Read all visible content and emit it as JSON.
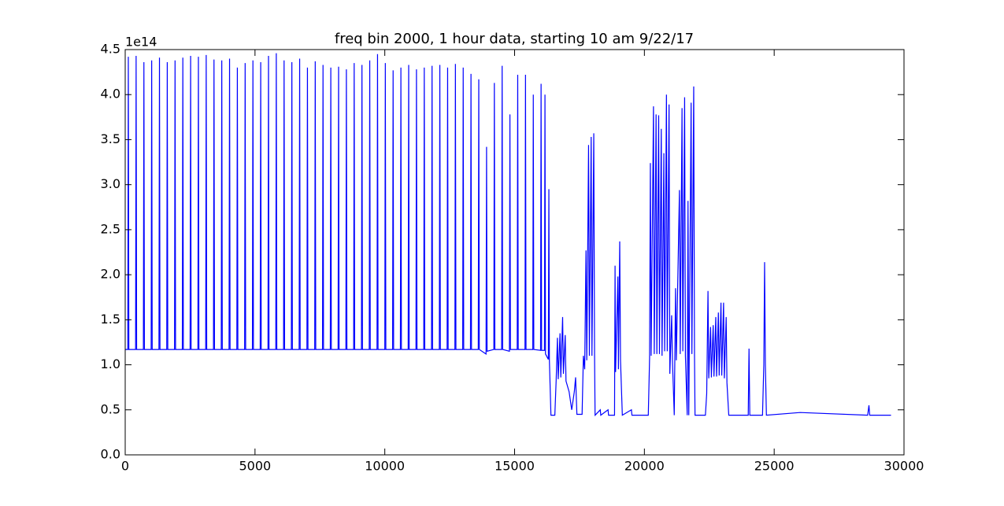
{
  "chart_data": {
    "type": "line",
    "title": "freq bin 2000, 1 hour data, starting 10 am 9/22/17",
    "y_offset_label": "1e14",
    "xlim": [
      0,
      30000
    ],
    "xticks": [
      0,
      5000,
      10000,
      15000,
      20000,
      25000,
      30000
    ],
    "ylim": [
      0,
      4.5
    ],
    "yticks": [
      {
        "value": 0,
        "label": "0.0"
      },
      0.5,
      {
        "value": 1,
        "label": "1.0"
      },
      1.5,
      {
        "value": 2,
        "label": "2.0"
      },
      2.5,
      {
        "value": 3,
        "label": "3.0"
      },
      3.5,
      {
        "value": 4,
        "label": "4.0"
      },
      4.5
    ],
    "grid": false,
    "x": [
      0,
      100,
      120,
      140,
      400,
      420,
      440,
      700,
      720,
      740,
      1000,
      1020,
      1040,
      1300,
      1320,
      1340,
      1600,
      1620,
      1640,
      1900,
      1920,
      1940,
      2200,
      2220,
      2240,
      2500,
      2520,
      2540,
      2800,
      2820,
      2840,
      3100,
      3120,
      3140,
      3400,
      3420,
      3440,
      3700,
      3720,
      3740,
      4000,
      4020,
      4040,
      4300,
      4320,
      4340,
      4600,
      4620,
      4640,
      4900,
      4920,
      4940,
      5200,
      5220,
      5240,
      5500,
      5520,
      5540,
      5800,
      5820,
      5840,
      6100,
      6120,
      6140,
      6400,
      6420,
      6440,
      6700,
      6720,
      6740,
      7000,
      7020,
      7040,
      7300,
      7320,
      7340,
      7600,
      7620,
      7640,
      7900,
      7920,
      7940,
      8200,
      8220,
      8240,
      8500,
      8520,
      8540,
      8800,
      8820,
      8840,
      9100,
      9120,
      9140,
      9400,
      9420,
      9440,
      9700,
      9720,
      9740,
      10000,
      10020,
      10040,
      10300,
      10320,
      10340,
      10600,
      10620,
      10640,
      10900,
      10920,
      10940,
      11200,
      11220,
      11240,
      11500,
      11520,
      11540,
      11800,
      11820,
      11840,
      12100,
      12120,
      12140,
      12400,
      12420,
      12440,
      12700,
      12720,
      12740,
      13000,
      13020,
      13040,
      13300,
      13320,
      13340,
      13600,
      13620,
      13640,
      13900,
      13920,
      13940,
      14200,
      14220,
      14240,
      14500,
      14520,
      14540,
      14800,
      14820,
      14840,
      15100,
      15120,
      15140,
      15400,
      15420,
      15440,
      15700,
      15720,
      15740,
      16000,
      16020,
      16040,
      16150,
      16170,
      16190,
      16300,
      16320,
      16340,
      16400,
      16550,
      16600,
      16650,
      16680,
      16750,
      16780,
      16850,
      16880,
      16950,
      16980,
      17100,
      17200,
      17300,
      17350,
      17400,
      17600,
      17650,
      17700,
      17750,
      17780,
      17850,
      17880,
      17950,
      17980,
      18050,
      18080,
      18100,
      18300,
      18320,
      18600,
      18620,
      18850,
      18870,
      18890,
      18980,
      19000,
      19050,
      19080,
      19150,
      19500,
      19520,
      20150,
      20200,
      20230,
      20260,
      20350,
      20380,
      20450,
      20480,
      20550,
      20580,
      20650,
      20680,
      20750,
      20780,
      20850,
      20880,
      20950,
      20980,
      21050,
      21080,
      21150,
      21200,
      21230,
      21350,
      21380,
      21450,
      21480,
      21550,
      21580,
      21650,
      21680,
      21710,
      21800,
      21830,
      21900,
      21930,
      21950,
      22350,
      22400,
      22450,
      22480,
      22550,
      22580,
      22650,
      22680,
      22750,
      22780,
      22850,
      22880,
      22950,
      22980,
      23050,
      23080,
      23150,
      23180,
      23250,
      24000,
      24030,
      24060,
      24550,
      24600,
      24630,
      24660,
      24700,
      26000,
      28600,
      28650,
      28680,
      29500
    ],
    "series": [
      {
        "color": "#0000ff",
        "values": [
          1.17,
          1.17,
          4.42,
          1.17,
          1.17,
          4.43,
          1.17,
          1.17,
          4.36,
          1.17,
          1.17,
          4.38,
          1.17,
          1.17,
          4.41,
          1.17,
          1.17,
          4.36,
          1.17,
          1.17,
          4.38,
          1.17,
          1.17,
          4.41,
          1.17,
          1.17,
          4.43,
          1.17,
          1.17,
          4.42,
          1.17,
          1.17,
          4.44,
          1.17,
          1.17,
          4.39,
          1.17,
          1.17,
          4.38,
          1.17,
          1.17,
          4.4,
          1.17,
          1.17,
          4.3,
          1.17,
          1.17,
          4.35,
          1.17,
          1.17,
          4.38,
          1.17,
          1.17,
          4.36,
          1.17,
          1.17,
          4.43,
          1.17,
          1.17,
          4.46,
          1.17,
          1.17,
          4.38,
          1.17,
          1.17,
          4.36,
          1.17,
          1.17,
          4.4,
          1.17,
          1.17,
          4.3,
          1.17,
          1.17,
          4.37,
          1.17,
          1.17,
          4.33,
          1.17,
          1.17,
          4.3,
          1.17,
          1.17,
          4.31,
          1.17,
          1.17,
          4.28,
          1.17,
          1.17,
          4.35,
          1.17,
          1.17,
          4.33,
          1.17,
          1.17,
          4.38,
          1.17,
          1.17,
          4.45,
          1.17,
          1.17,
          4.35,
          1.17,
          1.17,
          4.27,
          1.17,
          1.17,
          4.3,
          1.17,
          1.17,
          4.33,
          1.17,
          1.17,
          4.28,
          1.17,
          1.17,
          4.3,
          1.17,
          1.17,
          4.32,
          1.17,
          1.17,
          4.33,
          1.17,
          1.17,
          4.3,
          1.17,
          1.17,
          4.34,
          1.17,
          1.17,
          4.3,
          1.17,
          1.17,
          4.23,
          1.17,
          1.17,
          4.17,
          1.17,
          1.12,
          3.42,
          1.15,
          1.17,
          4.13,
          1.17,
          1.17,
          4.32,
          1.17,
          1.15,
          3.78,
          1.17,
          1.17,
          4.22,
          1.17,
          1.17,
          4.22,
          1.17,
          1.17,
          4.0,
          1.17,
          1.16,
          4.12,
          1.16,
          1.16,
          4.0,
          1.12,
          1.06,
          2.95,
          1.05,
          0.44,
          0.44,
          0.82,
          1.3,
          0.84,
          1.35,
          0.86,
          1.53,
          0.9,
          1.33,
          0.82,
          0.7,
          0.5,
          0.7,
          0.86,
          0.45,
          0.45,
          1.1,
          0.95,
          2.27,
          1.05,
          3.44,
          1.1,
          3.53,
          1.1,
          3.57,
          1.12,
          0.44,
          0.5,
          0.44,
          0.5,
          0.44,
          0.44,
          2.1,
          0.92,
          1.98,
          0.95,
          2.37,
          1.05,
          0.44,
          0.5,
          0.44,
          0.44,
          1.08,
          3.24,
          1.1,
          3.87,
          1.12,
          3.78,
          1.12,
          3.77,
          1.12,
          3.62,
          1.1,
          3.35,
          1.15,
          4.0,
          1.15,
          3.89,
          0.9,
          1.55,
          1.05,
          0.44,
          1.85,
          1.05,
          2.94,
          1.12,
          3.85,
          1.15,
          3.97,
          1.1,
          0.44,
          2.82,
          0.44,
          3.91,
          1.12,
          4.09,
          1.12,
          0.44,
          0.44,
          0.68,
          1.82,
          0.85,
          1.42,
          0.86,
          1.44,
          0.87,
          1.53,
          0.87,
          1.58,
          0.88,
          1.69,
          0.88,
          1.69,
          0.85,
          1.53,
          0.8,
          0.44,
          0.44,
          1.18,
          0.44,
          0.44,
          1.0,
          2.14,
          1.0,
          0.44,
          0.47,
          0.44,
          0.55,
          0.44,
          0.44
        ]
      }
    ]
  }
}
